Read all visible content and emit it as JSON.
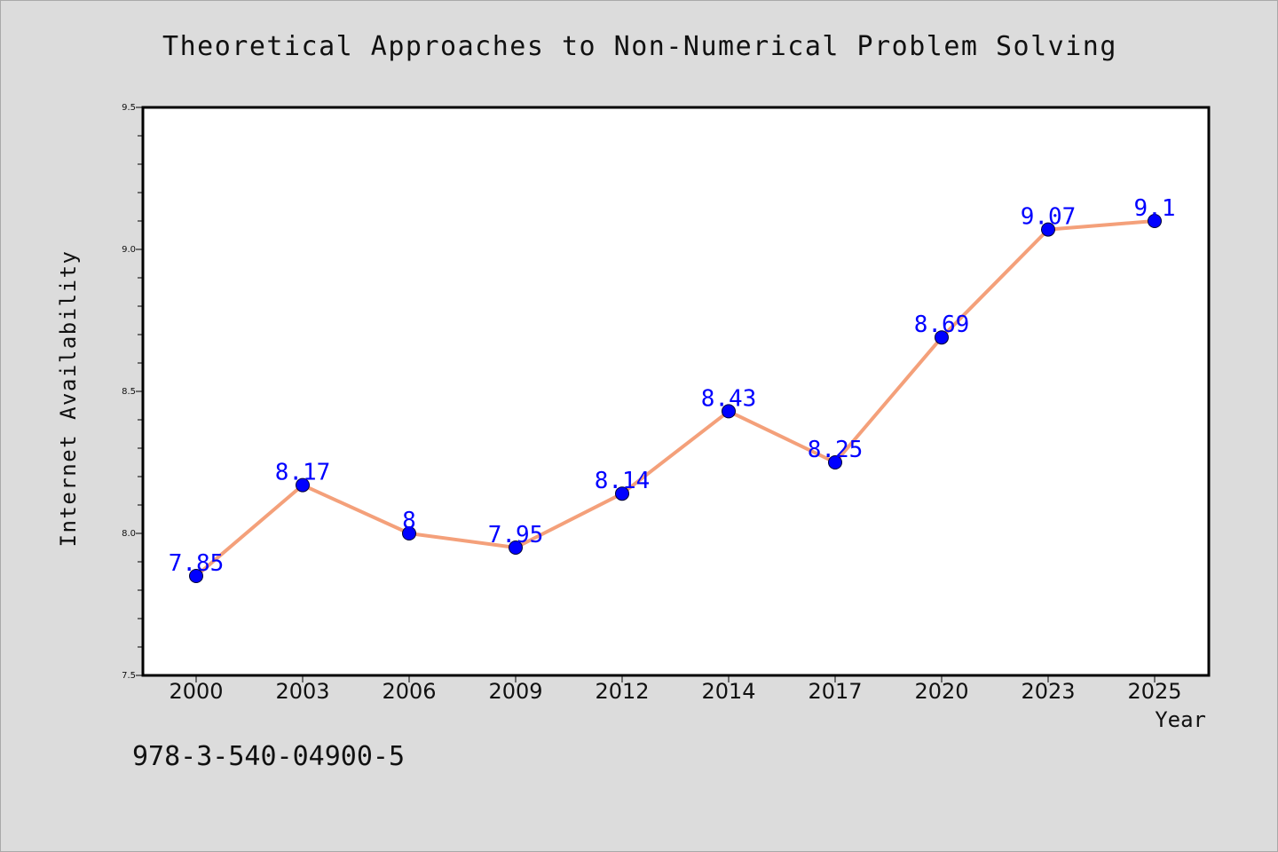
{
  "chart_data": {
    "type": "line",
    "title": "Theoretical Approaches to Non-Numerical Problem Solving",
    "xlabel": "Year",
    "ylabel": "Internet Availability",
    "categories": [
      "2000",
      "2003",
      "2006",
      "2009",
      "2012",
      "2014",
      "2017",
      "2020",
      "2023",
      "2025"
    ],
    "series": [
      {
        "values": [
          7.85,
          8.17,
          8.0,
          7.95,
          8.14,
          8.43,
          8.25,
          8.69,
          9.07,
          9.1
        ],
        "data_labels": [
          "7.85",
          "8.17",
          "8",
          "7.95",
          "8.14",
          "8.43",
          "8.25",
          "8.69",
          "9.07",
          "9.1"
        ]
      }
    ],
    "ylim": [
      7.5,
      9.5
    ],
    "yticks": [
      7.5,
      8.0,
      8.5,
      9.0,
      9.5
    ],
    "ytick_labels": [
      "7.5",
      "8.0",
      "8.5",
      "9.0",
      "9.5"
    ],
    "grid": false,
    "legend": "none"
  },
  "footnote": "978-3-540-04900-5",
  "colors": {
    "background": "#dcdcdc",
    "plot_area": "#ffffff",
    "line": "#f4a07a",
    "marker": "#0000ff",
    "data_label": "#0000ff"
  }
}
